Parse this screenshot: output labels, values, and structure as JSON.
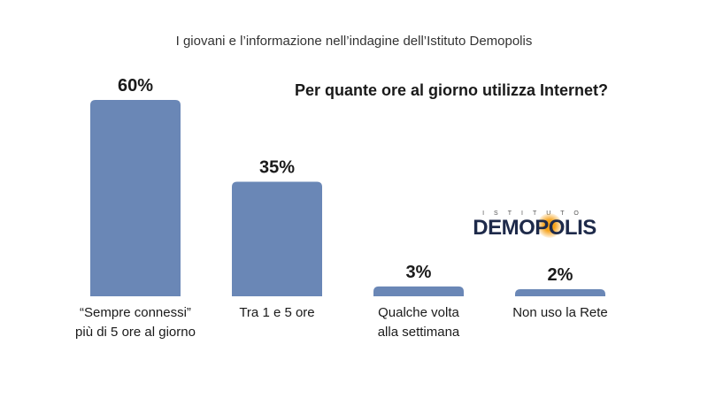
{
  "page": {
    "title": "I giovani e l’informazione nell’indagine dell’Istituto Demopolis",
    "question": "Per quante ore al giorno utilizza Internet?"
  },
  "logo": {
    "top_text": "ISTITUTO",
    "main_text": "DEMOPOLIS"
  },
  "colors": {
    "bar": "#6a87b6",
    "text": "#1a1a1a",
    "logo_accent": "#f6a21a",
    "logo_text": "#1e2a4a"
  },
  "chart_data": {
    "type": "bar",
    "title": "Per quante ore al giorno utilizza Internet?",
    "categories": [
      [
        "“Sempre connessi”",
        "più di 5 ore al giorno"
      ],
      [
        "Tra 1 e 5 ore"
      ],
      [
        "Qualche volta",
        "alla settimana"
      ],
      [
        "Non uso la Rete"
      ]
    ],
    "values": [
      60,
      35,
      3,
      2
    ],
    "value_labels": [
      "60%",
      "35%",
      "3%",
      "2%"
    ],
    "unit": "%",
    "ylim": [
      0,
      60
    ],
    "grid": false,
    "xlabel": "",
    "ylabel": ""
  }
}
